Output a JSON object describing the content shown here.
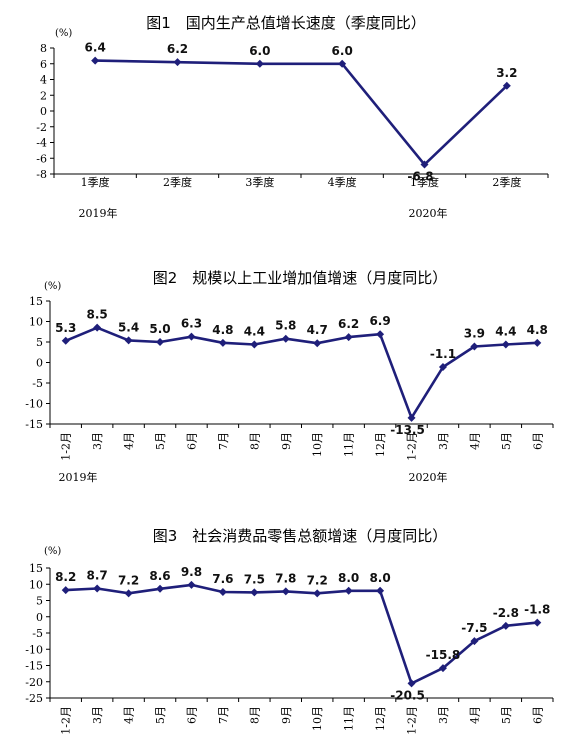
{
  "charts": [
    {
      "title": "图1　国内生产总值增长速度（季度同比）",
      "unit": "(%)",
      "type": "line",
      "categories": [
        "1季度",
        "2季度",
        "3季度",
        "4季度",
        "1季度",
        "2季度"
      ],
      "values": [
        6.4,
        6.2,
        6.0,
        6.0,
        -6.8,
        3.2
      ],
      "value_labels": [
        "6.4",
        "6.2",
        "6.0",
        "6.0",
        "-6.8",
        "3.2"
      ],
      "y_ticks": [
        "8",
        "6",
        "4",
        "2",
        "0",
        "-2",
        "-4",
        "-6",
        "-8"
      ],
      "ylim": [
        -8,
        8
      ],
      "years": [
        "2019年",
        "2020年"
      ],
      "line_color": "#1F1F7A"
    },
    {
      "title": "图2　规模以上工业增加值增速（月度同比）",
      "unit": "(%)",
      "type": "line",
      "categories": [
        "1-2月",
        "3月",
        "4月",
        "5月",
        "6月",
        "7月",
        "8月",
        "9月",
        "10月",
        "11月",
        "12月",
        "1-2月",
        "3月",
        "4月",
        "5月",
        "6月"
      ],
      "values": [
        5.3,
        8.5,
        5.4,
        5.0,
        6.3,
        4.8,
        4.4,
        5.8,
        4.7,
        6.2,
        6.9,
        -13.5,
        -1.1,
        3.9,
        4.4,
        4.8
      ],
      "value_labels": [
        "5.3",
        "8.5",
        "5.4",
        "5.0",
        "6.3",
        "4.8",
        "4.4",
        "5.8",
        "4.7",
        "6.2",
        "6.9",
        "-13.5",
        "-1.1",
        "3.9",
        "4.4",
        "4.8"
      ],
      "y_ticks": [
        "15",
        "10",
        "5",
        "0",
        "-5",
        "-10",
        "-15"
      ],
      "ylim": [
        -15,
        15
      ],
      "years": [
        "2019年",
        "2020年"
      ],
      "line_color": "#1F1F7A"
    },
    {
      "title": "图3　社会消费品零售总额增速（月度同比）",
      "unit": "(%)",
      "type": "line",
      "categories": [
        "1-2月",
        "3月",
        "4月",
        "5月",
        "6月",
        "7月",
        "8月",
        "9月",
        "10月",
        "11月",
        "12月",
        "1-2月",
        "3月",
        "4月",
        "5月",
        "6月"
      ],
      "values": [
        8.2,
        8.7,
        7.2,
        8.6,
        9.8,
        7.6,
        7.5,
        7.8,
        7.2,
        8.0,
        8.0,
        -20.5,
        -15.8,
        -7.5,
        -2.8,
        -1.8
      ],
      "value_labels": [
        "8.2",
        "8.7",
        "7.2",
        "8.6",
        "9.8",
        "7.6",
        "7.5",
        "7.8",
        "7.2",
        "8.0",
        "8.0",
        "-20.5",
        "-15.8",
        "-7.5",
        "-2.8",
        "-1.8"
      ],
      "y_ticks": [
        "15",
        "10",
        "5",
        "0",
        "-5",
        "-10",
        "-15",
        "-20",
        "-25"
      ],
      "ylim": [
        -25,
        15
      ],
      "years": [],
      "line_color": "#1F1F7A"
    }
  ],
  "chart_data": [
    {
      "type": "line",
      "title": "图1　国内生产总值增长速度（季度同比）",
      "ylabel": "(%)",
      "categories": [
        "1季度",
        "2季度",
        "3季度",
        "4季度",
        "1季度",
        "2季度"
      ],
      "values": [
        6.4,
        6.2,
        6.0,
        6.0,
        -6.8,
        3.2
      ],
      "ylim": [
        -8,
        8
      ]
    },
    {
      "type": "line",
      "title": "图2　规模以上工业增加值增速（月度同比）",
      "ylabel": "(%)",
      "categories": [
        "1-2月",
        "3月",
        "4月",
        "5月",
        "6月",
        "7月",
        "8月",
        "9月",
        "10月",
        "11月",
        "12月",
        "1-2月",
        "3月",
        "4月",
        "5月",
        "6月"
      ],
      "values": [
        5.3,
        8.5,
        5.4,
        5.0,
        6.3,
        4.8,
        4.4,
        5.8,
        4.7,
        6.2,
        6.9,
        -13.5,
        -1.1,
        3.9,
        4.4,
        4.8
      ],
      "ylim": [
        -15,
        15
      ]
    },
    {
      "type": "line",
      "title": "图3　社会消费品零售总额增速（月度同比）",
      "ylabel": "(%)",
      "categories": [
        "1-2月",
        "3月",
        "4月",
        "5月",
        "6月",
        "7月",
        "8月",
        "9月",
        "10月",
        "11月",
        "12月",
        "1-2月",
        "3月",
        "4月",
        "5月",
        "6月"
      ],
      "values": [
        8.2,
        8.7,
        7.2,
        8.6,
        9.8,
        7.6,
        7.5,
        7.8,
        7.2,
        8.0,
        8.0,
        -20.5,
        -15.8,
        -7.5,
        -2.8,
        -1.8
      ],
      "ylim": [
        -25,
        15
      ]
    }
  ]
}
